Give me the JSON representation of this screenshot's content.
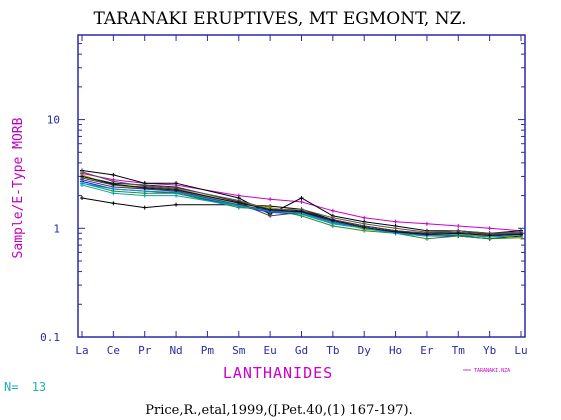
{
  "chart_data": {
    "type": "line",
    "title": "TARANAKI ERUPTIVES, MT EGMONT, NZ.",
    "ylabel": "Sample/E-Type MORB",
    "xlabel": "LANTHANIDES",
    "yscale": "log",
    "ylim": [
      0.1,
      60
    ],
    "yticks": [
      {
        "value": 10,
        "label": "10"
      },
      {
        "value": 1,
        "label": "1"
      },
      {
        "value": 0.1,
        "label": "0.1"
      }
    ],
    "categories": [
      "La",
      "Ce",
      "Pr",
      "Nd",
      "Pm",
      "Sm",
      "Eu",
      "Gd",
      "Tb",
      "Dy",
      "Ho",
      "Er",
      "Tm",
      "Yb",
      "Lu"
    ],
    "legend": "TARANAKI.NZA",
    "n_label": "N=",
    "n_value": "13",
    "citation": "Price,R.,etal,1999,(J.Pet.40,(1) 167-197).",
    "colors": {
      "frame": "#2a2aa8",
      "ylabel": "#c000c0",
      "xlabel": "#cc00cc",
      "legend": "#cc00cc",
      "ncount": "#20b0b0"
    },
    "series": [
      {
        "color": "#cc00cc",
        "values": [
          3.2,
          2.8,
          2.6,
          2.5,
          null,
          2.0,
          1.85,
          1.75,
          1.45,
          1.25,
          1.15,
          1.1,
          1.05,
          1.0,
          0.95
        ]
      },
      {
        "color": "#000000",
        "values": [
          3.4,
          3.1,
          2.6,
          2.6,
          null,
          1.9,
          1.35,
          1.9,
          1.3,
          1.15,
          1.05,
          0.95,
          0.95,
          0.9,
          0.95
        ]
      },
      {
        "color": "#000000",
        "values": [
          1.9,
          1.7,
          1.55,
          1.65,
          null,
          1.65,
          1.6,
          1.5,
          1.2,
          1.05,
          0.95,
          0.85,
          0.85,
          0.8,
          0.85
        ]
      },
      {
        "color": "#222222",
        "values": [
          3.0,
          2.6,
          2.5,
          2.4,
          null,
          1.75,
          1.5,
          1.45,
          1.2,
          1.05,
          0.95,
          0.9,
          0.95,
          0.88,
          0.9
        ]
      },
      {
        "color": "#1a1acc",
        "values": [
          2.7,
          2.3,
          2.2,
          2.1,
          null,
          1.6,
          1.4,
          1.35,
          1.1,
          1.0,
          0.9,
          0.85,
          0.85,
          0.85,
          0.88
        ]
      },
      {
        "color": "#2a8a2a",
        "values": [
          2.6,
          2.2,
          2.1,
          2.1,
          null,
          1.55,
          1.5,
          1.3,
          1.05,
          0.95,
          0.9,
          0.8,
          0.85,
          0.8,
          0.82
        ]
      },
      {
        "color": "#00aaaa",
        "values": [
          2.5,
          2.1,
          2.0,
          2.0,
          null,
          1.6,
          1.45,
          1.35,
          1.1,
          1.0,
          0.9,
          0.85,
          0.9,
          0.85,
          0.9
        ]
      },
      {
        "color": "#aaaa00",
        "values": [
          3.1,
          2.5,
          2.3,
          2.2,
          null,
          1.7,
          1.55,
          1.4,
          1.15,
          0.98,
          0.92,
          0.85,
          0.88,
          0.85,
          0.82
        ]
      },
      {
        "color": "#333399",
        "values": [
          2.8,
          2.4,
          2.3,
          2.2,
          null,
          1.65,
          1.45,
          1.4,
          1.15,
          1.0,
          0.92,
          0.87,
          0.9,
          0.86,
          0.88
        ]
      },
      {
        "color": "#444444",
        "values": [
          2.9,
          2.5,
          2.4,
          2.3,
          null,
          1.7,
          1.3,
          1.4,
          1.2,
          1.05,
          0.95,
          0.9,
          0.92,
          0.88,
          0.9
        ]
      },
      {
        "color": "#555555",
        "values": [
          3.3,
          2.7,
          2.45,
          2.35,
          null,
          1.8,
          1.5,
          1.5,
          1.25,
          1.1,
          1.0,
          0.92,
          0.95,
          0.9,
          0.92
        ]
      },
      {
        "color": "#0099cc",
        "values": [
          2.6,
          2.3,
          2.2,
          2.15,
          null,
          1.62,
          1.42,
          1.38,
          1.12,
          1.0,
          0.9,
          0.85,
          0.87,
          0.83,
          0.86
        ]
      },
      {
        "color": "#111111",
        "values": [
          3.0,
          2.55,
          2.35,
          2.25,
          null,
          1.72,
          1.48,
          1.42,
          1.18,
          1.02,
          0.93,
          0.88,
          0.9,
          0.86,
          0.88
        ]
      }
    ]
  }
}
